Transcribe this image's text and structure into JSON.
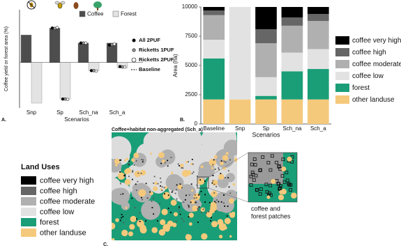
{
  "chart_data": [
    {
      "type": "bar",
      "panel": "A.",
      "y_label": "Coffee yield or forest area (%)",
      "x_label": "Scenarios",
      "categories": [
        "Snp",
        "Sp",
        "Sch_na",
        "Sch_a"
      ],
      "ylim": [
        -112,
        130
      ],
      "grid": false,
      "series": [
        {
          "name": "Coffee",
          "color": "#4d4d4d",
          "values": [
            68,
            85,
            48,
            48
          ]
        },
        {
          "name": "Forest",
          "color": "#e3e3e3",
          "values": [
            -100,
            -90,
            -20,
            -13
          ]
        }
      ],
      "points": [
        {
          "name": "All 2PUF",
          "marker": "filled",
          "coffee": [
            null,
            85,
            48,
            43
          ],
          "forest": [
            null,
            -90,
            -20,
            -10
          ]
        },
        {
          "name": "Ricketts 1PUF",
          "marker": "grey",
          "coffee": [
            null,
            84,
            48,
            44
          ],
          "forest": [
            null,
            -90,
            -20,
            -11
          ]
        },
        {
          "name": "Ricketts 2PUF",
          "marker": "open",
          "coffee": [
            null,
            86,
            48,
            45
          ],
          "forest": [
            null,
            -91,
            -21,
            -11
          ]
        },
        {
          "name": "Baseline",
          "marker": "dashed"
        }
      ]
    },
    {
      "type": "stacked_bar",
      "panel": "B.",
      "y_label": "Area (ha)",
      "x_label": "Scenarios",
      "categories": [
        "Baseline",
        "Snp",
        "Sp",
        "Sch_na",
        "Sch_a"
      ],
      "ylim": [
        0,
        10000
      ],
      "yticks": [
        0,
        2500,
        5000,
        7500,
        10000
      ],
      "series": [
        {
          "name": "other landuse",
          "color": "#f5c97c",
          "values": [
            2100,
            2100,
            2100,
            2100,
            2100
          ]
        },
        {
          "name": "forest",
          "color": "#1a9e77",
          "values": [
            3500,
            0,
            300,
            2400,
            2600
          ]
        },
        {
          "name": "coffee low",
          "color": "#e2e2e2",
          "values": [
            1600,
            7900,
            1600,
            1600,
            1700
          ]
        },
        {
          "name": "coffee moderate",
          "color": "#b0b0b0",
          "values": [
            2100,
            0,
            2900,
            2300,
            2400
          ]
        },
        {
          "name": "coffee high",
          "color": "#666666",
          "values": [
            400,
            0,
            1200,
            700,
            600
          ]
        },
        {
          "name": "coffee very high",
          "color": "#000000",
          "values": [
            300,
            0,
            1900,
            900,
            600
          ]
        }
      ]
    }
  ],
  "map": {
    "panel": "C.",
    "title": "Coffee+habitat non-aggregated (Sch_a)",
    "legend_title": "Land Uses",
    "legend": [
      "coffee very high",
      "coffee high",
      "coffee moderate",
      "coffee low",
      "forest",
      "other landuse"
    ],
    "inset_caption": [
      "coffee and",
      "forest patches"
    ]
  }
}
